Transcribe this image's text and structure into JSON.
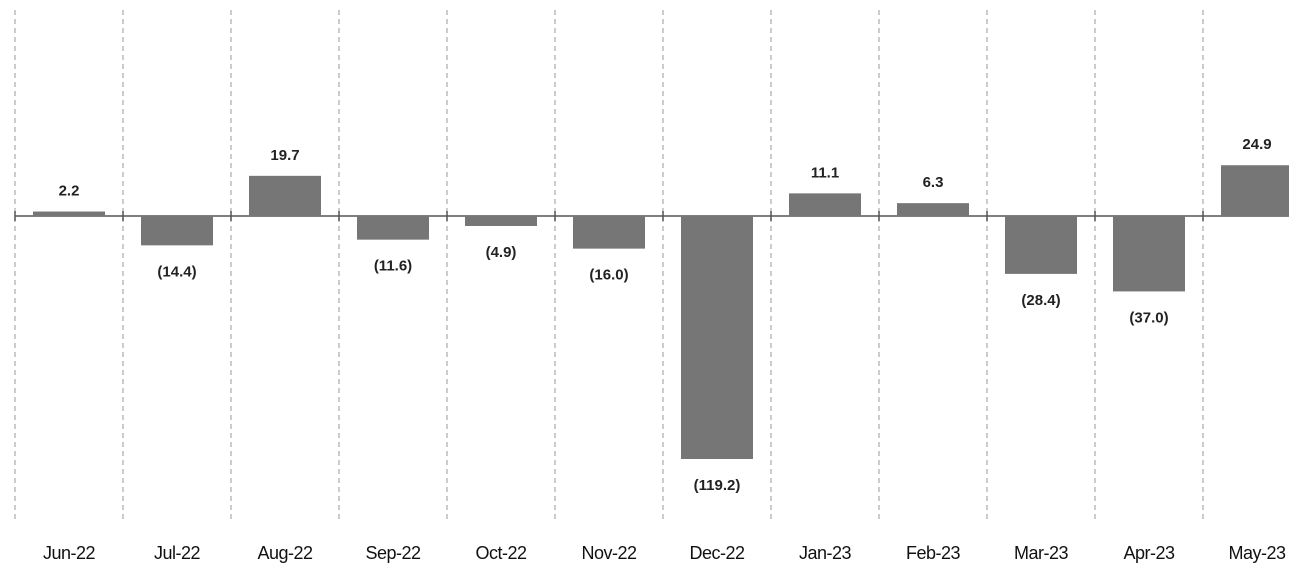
{
  "chart_data": {
    "type": "bar",
    "categories": [
      "Jun-22",
      "Jul-22",
      "Aug-22",
      "Sep-22",
      "Oct-22",
      "Nov-22",
      "Dec-22",
      "Jan-23",
      "Feb-23",
      "Mar-23",
      "Apr-23",
      "May-23"
    ],
    "values": [
      2.2,
      -14.4,
      19.7,
      -11.6,
      -4.9,
      -16.0,
      -119.2,
      11.1,
      6.3,
      -28.4,
      -37.0,
      24.9
    ],
    "value_labels": [
      "2.2",
      "(14.4)",
      "19.7",
      "(11.6)",
      "(4.9)",
      "(16.0)",
      "(119.2)",
      "11.1",
      "6.3",
      "(28.4)",
      "(37.0)",
      "24.9"
    ],
    "color": "#767676"
  }
}
